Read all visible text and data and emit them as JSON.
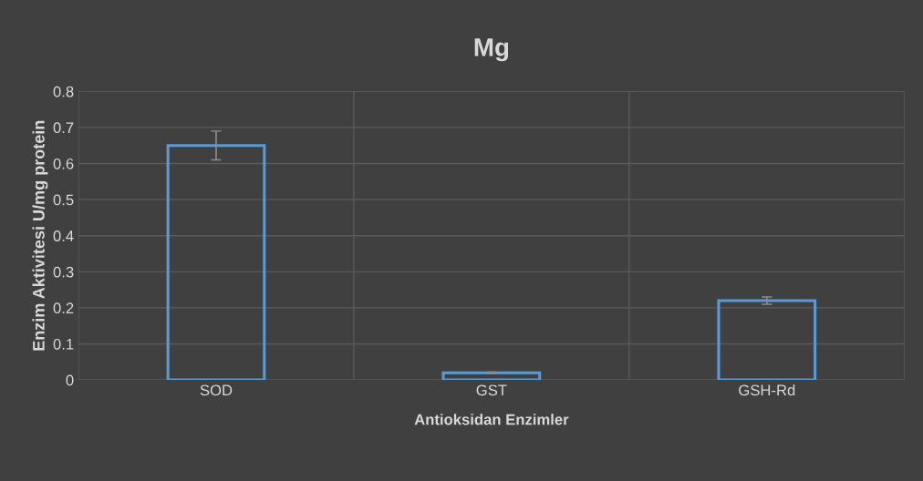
{
  "chart_data": {
    "type": "bar",
    "title": "Mg",
    "xlabel": "Antioksidan Enzimler",
    "ylabel": "Enzim Aktivitesi U/mg protein",
    "categories": [
      "SOD",
      "GST",
      "GSH-Rd"
    ],
    "series": [
      {
        "color": "#5b9bd5",
        "values": [
          0.65,
          0.02,
          0.22
        ],
        "errors": [
          0.04,
          0.002,
          0.01
        ]
      }
    ],
    "ylim": [
      0,
      0.8
    ],
    "yticks": [
      {
        "value": 0,
        "label": "0"
      },
      0.1,
      0.2,
      0.3,
      0.4,
      0.5,
      0.6,
      0.7,
      0.8
    ],
    "grid": true
  }
}
